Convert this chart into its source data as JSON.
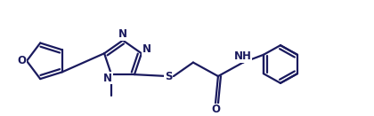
{
  "line_color": "#1a1a5e",
  "line_width": 1.6,
  "font_size": 8.5,
  "fig_width": 4.2,
  "fig_height": 1.31,
  "dpi": 100,
  "xlim": [
    0,
    4.2
  ],
  "ylim": [
    0,
    1.31
  ]
}
